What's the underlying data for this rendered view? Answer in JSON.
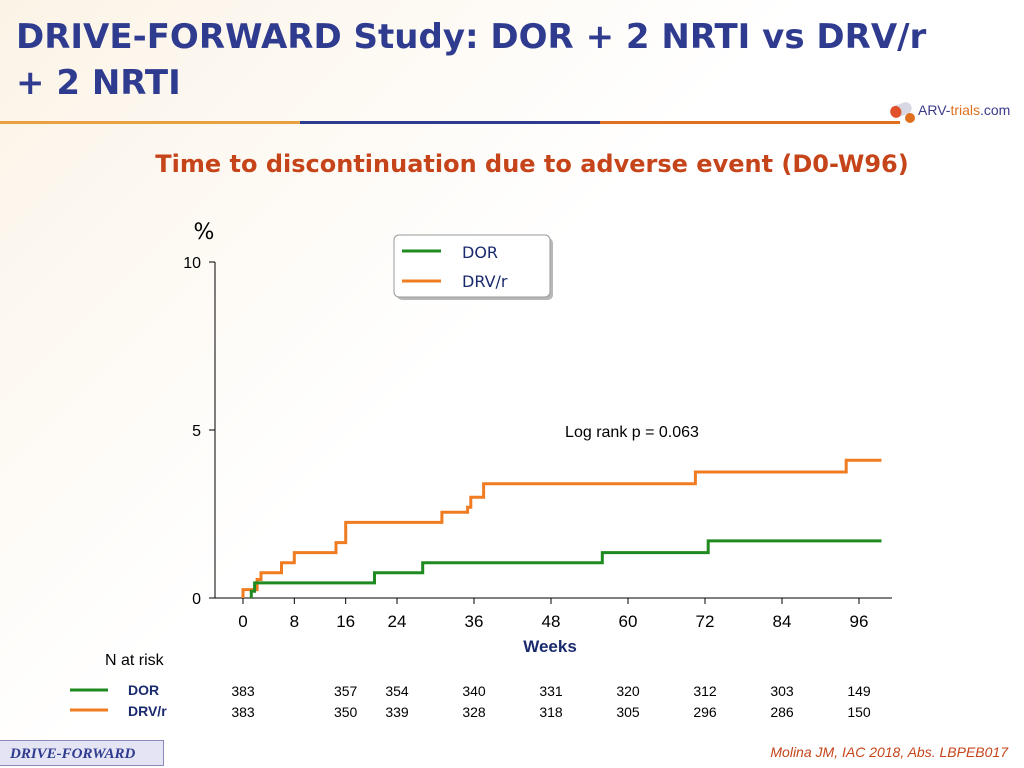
{
  "slide": {
    "title": "DRIVE-FORWARD Study: DOR + 2 NRTI vs DRV/r + 2 NRTI",
    "subtitle": "Time to discontinuation due to adverse event (D0-W96)",
    "logo_text_a": "ARV-",
    "logo_text_b": "trials",
    "logo_text_c": ".com",
    "footer_label": "DRIVE-FORWARD",
    "citation": "Molina JM, IAC 2018, Abs. LBPEB017"
  },
  "colors": {
    "title": "#2e3b8f",
    "accent": "#c6441a",
    "dor": "#1f8a1f",
    "drv": "#f07c22"
  },
  "chart_data": {
    "type": "line",
    "title": "Time to discontinuation due to adverse event (D0-W96)",
    "ylabel": "%",
    "xlabel": "Weeks",
    "xlim": [
      0,
      100
    ],
    "ylim": [
      0,
      10
    ],
    "x_ticks": [
      0,
      8,
      16,
      24,
      36,
      48,
      60,
      72,
      84,
      96
    ],
    "y_ticks": [
      0,
      5,
      10
    ],
    "annotation": "Log rank p = 0.063",
    "legend": {
      "position": "top-center",
      "entries": [
        "DOR",
        "DRV/r"
      ]
    },
    "series": [
      {
        "name": "DOR",
        "color": "#1f8a1f",
        "steps": [
          [
            1.3,
            0
          ],
          [
            1.3,
            0.2
          ],
          [
            1.8,
            0.2
          ],
          [
            1.8,
            0.45
          ],
          [
            20.5,
            0.45
          ],
          [
            20.5,
            0.75
          ],
          [
            28,
            0.75
          ],
          [
            28,
            1.05
          ],
          [
            56,
            1.05
          ],
          [
            56,
            1.35
          ],
          [
            72.5,
            1.35
          ],
          [
            72.5,
            1.7
          ],
          [
            99.5,
            1.7
          ]
        ]
      },
      {
        "name": "DRV/r",
        "color": "#f07c22",
        "steps": [
          [
            0,
            0
          ],
          [
            0,
            0.25
          ],
          [
            2.2,
            0.25
          ],
          [
            2.2,
            0.55
          ],
          [
            2.8,
            0.55
          ],
          [
            2.8,
            0.75
          ],
          [
            6,
            0.75
          ],
          [
            6,
            1.05
          ],
          [
            8,
            1.05
          ],
          [
            8,
            1.35
          ],
          [
            14.5,
            1.35
          ],
          [
            14.5,
            1.65
          ],
          [
            16,
            1.65
          ],
          [
            16,
            2.25
          ],
          [
            31,
            2.25
          ],
          [
            31,
            2.55
          ],
          [
            35,
            2.55
          ],
          [
            35,
            2.7
          ],
          [
            35.5,
            2.7
          ],
          [
            35.5,
            3.0
          ],
          [
            37.5,
            3.0
          ],
          [
            37.5,
            3.4
          ],
          [
            70.5,
            3.4
          ],
          [
            70.5,
            3.75
          ],
          [
            94,
            3.75
          ],
          [
            94,
            4.1
          ],
          [
            99.5,
            4.1
          ]
        ]
      }
    ],
    "n_at_risk": {
      "label": "N at risk",
      "columns_weeks": [
        0,
        16,
        24,
        36,
        48,
        60,
        72,
        84,
        96
      ],
      "rows": [
        {
          "name": "DOR",
          "values": [
            "383",
            "357",
            "354",
            "340",
            "331",
            "320",
            "312",
            "303",
            "149"
          ]
        },
        {
          "name": "DRV/r",
          "values": [
            "383",
            "350",
            "339",
            "328",
            "318",
            "305",
            "296",
            "286",
            "150"
          ]
        }
      ]
    }
  }
}
